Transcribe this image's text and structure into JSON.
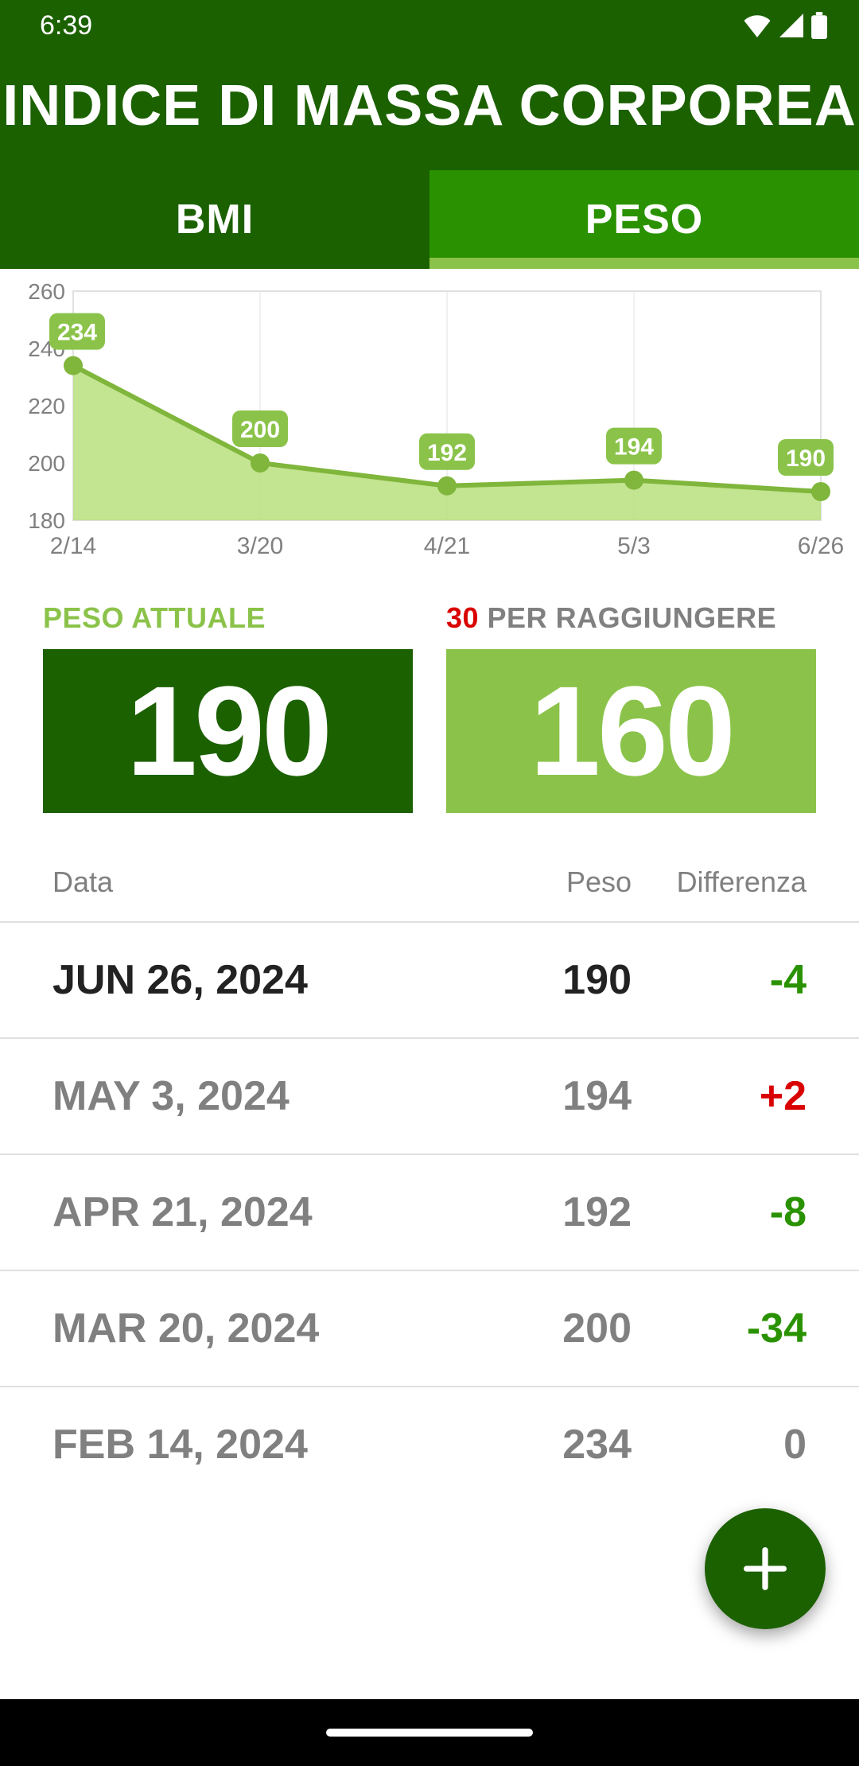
{
  "status": {
    "time": "6:39"
  },
  "header": {
    "title": "INDICE DI MASSA CORPOREA"
  },
  "tabs": {
    "bmi": "BMI",
    "peso": "PESO",
    "active": "peso"
  },
  "colors": {
    "header_bg": "#1c6100",
    "tab_active_bg": "#2a9200",
    "tab_indicator": "#8bc34a",
    "accent_green": "#1c6100",
    "light_green": "#8bc34a",
    "chart_fill": "#b8df7e",
    "chart_line": "#7fb63b",
    "grid": "#e0e0e0",
    "red": "#d90000"
  },
  "chart": {
    "type": "line-area",
    "ylim": [
      180,
      260
    ],
    "yticks": [
      180,
      200,
      220,
      240,
      260
    ],
    "ytick_fontsize": 28,
    "xlabels": [
      "2/14",
      "3/20",
      "4/21",
      "5/3",
      "6/26"
    ],
    "values": [
      234,
      200,
      192,
      194,
      190
    ],
    "point_labels": [
      "234",
      "200",
      "192",
      "194",
      "190"
    ],
    "point_label_bg": "#8bc34a",
    "point_label_color": "#ffffff",
    "line_color": "#7fb63b",
    "fill_color": "#b8df7e",
    "marker_color": "#7fb63b",
    "grid_color": "#e0e0e0",
    "axis_text_color": "#808080",
    "line_width": 6,
    "marker_radius": 12
  },
  "stats": {
    "current": {
      "label": "PESO ATTUALE",
      "label_color": "#8bc34a",
      "value": "190",
      "box_bg": "#1c6100"
    },
    "goal": {
      "prefix_value": "30",
      "prefix_color": "#d90000",
      "suffix_label": " PER RAGGIUNGERE",
      "suffix_color": "#808080",
      "value": "160",
      "box_bg": "#8bc34a"
    }
  },
  "table": {
    "headers": {
      "date": "Data",
      "peso": "Peso",
      "diff": "Differenza"
    },
    "rows": [
      {
        "date": "JUN 26, 2024",
        "peso": "190",
        "diff": "-4",
        "diff_color": "#2a9200",
        "current": true
      },
      {
        "date": "MAY 3, 2024",
        "peso": "194",
        "diff": "+2",
        "diff_color": "#d90000",
        "current": false
      },
      {
        "date": "APR 21, 2024",
        "peso": "192",
        "diff": "-8",
        "diff_color": "#2a9200",
        "current": false
      },
      {
        "date": "MAR 20, 2024",
        "peso": "200",
        "diff": "-34",
        "diff_color": "#2a9200",
        "current": false
      },
      {
        "date": "FEB 14, 2024",
        "peso": "234",
        "diff": "0",
        "diff_color": "#808080",
        "current": false
      }
    ]
  }
}
